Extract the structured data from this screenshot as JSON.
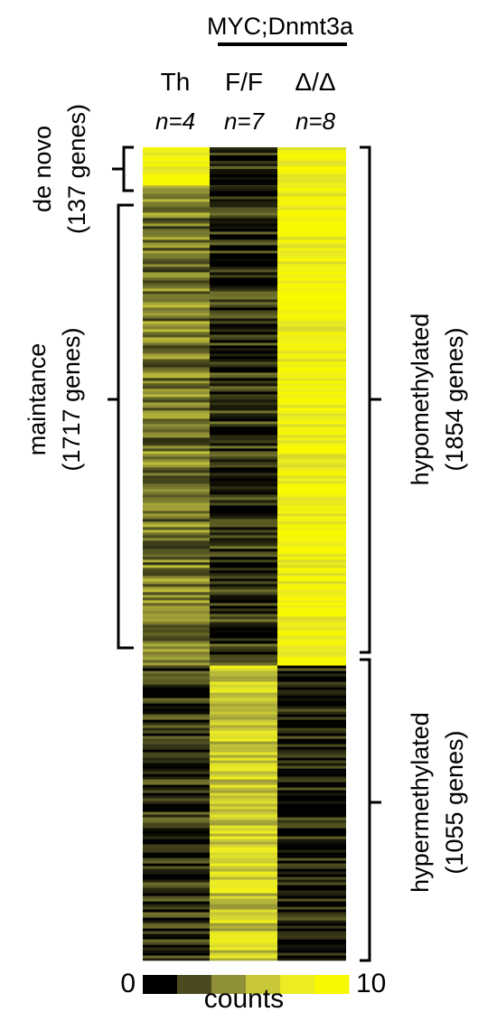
{
  "chart_data": {
    "type": "heatmap",
    "group_label": "MYC;Dnmt3a",
    "columns": [
      {
        "label": "Th",
        "n": "n=4"
      },
      {
        "label": "F/F",
        "n": "n=7"
      },
      {
        "label": "Δ/Δ",
        "n": "n=8"
      }
    ],
    "gene_blocks": [
      {
        "category": "de novo",
        "count_label": "(137 genes)",
        "genes": 137,
        "mean_counts": [
          9.5,
          0.8,
          9.0
        ]
      },
      {
        "category": "maintance",
        "count_label": "(1717 genes)",
        "genes": 1717,
        "mean_counts": [
          3.5,
          1.2,
          9.2
        ]
      },
      {
        "category": "hypermethylated",
        "count_label": "(1055 genes)",
        "genes": 1055,
        "mean_counts": [
          1.0,
          6.5,
          0.4
        ]
      }
    ],
    "right_brackets": [
      {
        "label": "hypomethylated",
        "count_label": "(1854 genes)"
      },
      {
        "label": "hypermethylated",
        "count_label": "(1055 genes)"
      }
    ],
    "color_scale": {
      "min_label": "0",
      "max_label": "10",
      "label": "counts",
      "colors": [
        "#000000",
        "#4a4a1e",
        "#8f8f38",
        "#c7c738",
        "#ecec22",
        "#f8f800"
      ]
    }
  }
}
